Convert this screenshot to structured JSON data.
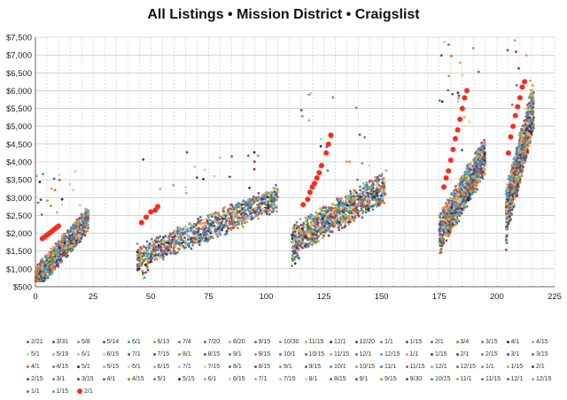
{
  "chart_data": {
    "type": "scatter",
    "title": "All Listings • Mission District •  Craigslist",
    "xlabel": "",
    "ylabel": "",
    "xlim": [
      0,
      225
    ],
    "ylim": [
      500,
      7500
    ],
    "x_ticks": [
      0,
      25,
      50,
      75,
      100,
      125,
      150,
      175,
      200,
      225
    ],
    "y_ticks": [
      500,
      1000,
      1500,
      2000,
      2500,
      3000,
      3500,
      4000,
      4500,
      5000,
      5500,
      6000,
      6500,
      7000,
      7500
    ],
    "y_tick_labels": [
      "$500",
      "$1,000",
      "$1,500",
      "$2,000",
      "$2,500",
      "$3,000",
      "$3,500",
      "$4,000",
      "$4,500",
      "$5,000",
      "$5,500",
      "$6,000",
      "$6,500",
      "$7,000",
      "$7,500"
    ],
    "grid": true,
    "legend_position": "bottom",
    "legend": [
      "2/21",
      "3/31",
      "5/8",
      "5/14",
      "6/1",
      "6/13",
      "7/4",
      "7/20",
      "8/20",
      "9/15",
      "10/30",
      "11/15",
      "12/1",
      "12/20",
      "1/1",
      "1/15",
      "2/1",
      "3/4",
      "3/15",
      "4/1",
      "4/15",
      "5/1",
      "5/19",
      "6/1",
      "6/15",
      "7/1",
      "7/15",
      "8/1",
      "8/15",
      "9/1",
      "9/15",
      "10/1",
      "10/15",
      "11/15",
      "12/1",
      "12/15",
      "1/1",
      "1/15",
      "2/1",
      "2/15",
      "3/1",
      "3/15",
      "4/1",
      "4/15",
      "5/1",
      "5/15",
      "6/1",
      "6/15",
      "7/1",
      "7/15",
      "8/1",
      "8/15",
      "9/1",
      "9/15",
      "10/1",
      "10/15",
      "11/1",
      "11/15",
      "12/1",
      "12/15",
      "1/1",
      "1/15",
      "2/1",
      "2/15",
      "3/1",
      "3/15",
      "4/1",
      "4/15",
      "5/1",
      "5/15",
      "6/1",
      "6/15",
      "7/1",
      "7/15",
      "8/1",
      "8/15",
      "9/1",
      "9/15",
      "9/30",
      "10/15",
      "11/1",
      "11/15",
      "12/1",
      "12/15",
      "1/1",
      "1/15",
      "2/1"
    ],
    "clusters": [
      {
        "x_range": [
          0,
          23
        ],
        "y_range": [
          700,
          2400
        ],
        "spread": 350
      },
      {
        "x_range": [
          44,
          105
        ],
        "y_range": [
          1300,
          3000
        ],
        "spread": 380
      },
      {
        "x_range": [
          111,
          152
        ],
        "y_range": [
          1800,
          3300
        ],
        "spread": 450
      },
      {
        "x_range": [
          175,
          195
        ],
        "y_range": [
          2000,
          4200
        ],
        "spread": 550
      },
      {
        "x_range": [
          204,
          216
        ],
        "y_range": [
          2600,
          5600
        ],
        "spread": 700
      }
    ],
    "highlight_series": {
      "name": "2/1",
      "color": "#ff2a1a",
      "points": [
        [
          3,
          1850
        ],
        [
          4,
          1900
        ],
        [
          5,
          1950
        ],
        [
          6,
          2000
        ],
        [
          7,
          2050
        ],
        [
          8,
          2100
        ],
        [
          9,
          2150
        ],
        [
          10,
          2200
        ],
        [
          46,
          2300
        ],
        [
          48,
          2450
        ],
        [
          50,
          2600
        ],
        [
          52,
          2650
        ],
        [
          53,
          2750
        ],
        [
          116,
          2800
        ],
        [
          118,
          2950
        ],
        [
          119,
          3150
        ],
        [
          120,
          3300
        ],
        [
          121,
          3400
        ],
        [
          122,
          3550
        ],
        [
          123,
          3700
        ],
        [
          124,
          3900
        ],
        [
          126,
          4250
        ],
        [
          127,
          4500
        ],
        [
          128,
          4750
        ],
        [
          177,
          3300
        ],
        [
          178,
          3550
        ],
        [
          179,
          3750
        ],
        [
          180,
          4050
        ],
        [
          181,
          4350
        ],
        [
          182,
          4650
        ],
        [
          183,
          4900
        ],
        [
          184,
          5200
        ],
        [
          185,
          5500
        ],
        [
          186,
          5800
        ],
        [
          187,
          6000
        ],
        [
          205,
          4250
        ],
        [
          206,
          4700
        ],
        [
          207,
          5000
        ],
        [
          208,
          5300
        ],
        [
          209,
          5550
        ],
        [
          210,
          5800
        ],
        [
          211,
          6100
        ],
        [
          212,
          6250
        ]
      ]
    }
  }
}
